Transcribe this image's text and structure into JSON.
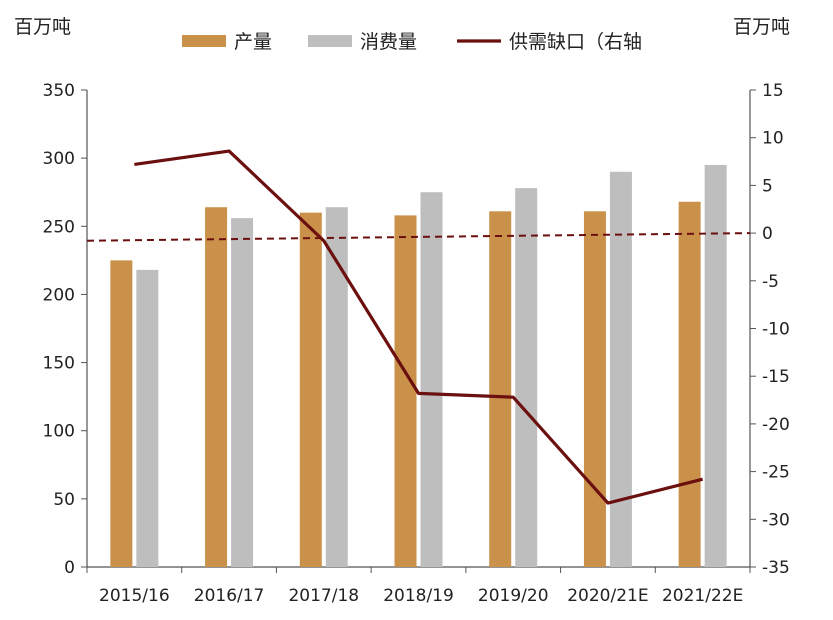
{
  "chart_data": {
    "type": "bar",
    "left_unit": "百万吨",
    "right_unit": "百万吨",
    "categories": [
      "2015/16",
      "2016/17",
      "2017/18",
      "2018/19",
      "2019/20",
      "2020/21E",
      "2021/22E"
    ],
    "series": [
      {
        "name": "产量",
        "type": "bar",
        "axis": "left",
        "color": "#C9914A",
        "values": [
          225,
          264,
          260,
          258,
          261,
          261,
          268
        ]
      },
      {
        "name": "消费量",
        "type": "bar",
        "axis": "left",
        "color": "#BEBEBE",
        "values": [
          218,
          256,
          264,
          275,
          278,
          290,
          295
        ]
      },
      {
        "name": "供需缺口（右轴",
        "type": "line",
        "axis": "right",
        "color": "#6B0F0F",
        "values": [
          7.2,
          8.6,
          -0.8,
          -16.8,
          -17.2,
          -28.3,
          -25.8
        ]
      }
    ],
    "trendline": {
      "axis": "right",
      "color": "#6B0F0F",
      "style": "dashed",
      "start": -0.8,
      "end": 0.0
    },
    "left_axis": {
      "min": 0,
      "max": 350,
      "ticks": [
        0,
        50,
        100,
        150,
        200,
        250,
        300,
        350
      ]
    },
    "right_axis": {
      "min": -35,
      "max": 15,
      "ticks": [
        15,
        10,
        5,
        0,
        -5,
        -10,
        -15,
        -20,
        -25,
        -30,
        -35
      ]
    },
    "legend_position": "top"
  }
}
